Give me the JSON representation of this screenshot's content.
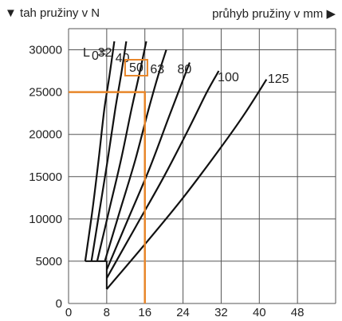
{
  "header": {
    "y_title": "tah pružiny v N",
    "y_marker": "▼",
    "x_title": "průhyb pružiny v mm",
    "x_marker": "▶"
  },
  "chart_data": {
    "type": "line",
    "title": "",
    "ylabel": "tah pružiny v N",
    "xlabel": "průhyb pružiny v mm",
    "xlim": [
      0,
      56
    ],
    "ylim": [
      0,
      32500
    ],
    "xticks": [
      "0",
      "8",
      "16",
      "24",
      "32",
      "40",
      "48"
    ],
    "yticks": [
      "0",
      "5000",
      "10000",
      "15000",
      "20000",
      "25000",
      "30000"
    ],
    "grid": true,
    "curve_label_prefix": "L",
    "curve_label_sub": "0",
    "curve_label_eq": "=",
    "series": [
      {
        "name": "32",
        "points": [
          [
            3.5,
            5000
          ],
          [
            5,
            11000
          ],
          [
            6.3,
            17000
          ],
          [
            7.5,
            23000
          ],
          [
            8.6,
            27000
          ],
          [
            9.6,
            31000
          ]
        ]
      },
      {
        "name": "40",
        "points": [
          [
            4.8,
            5000
          ],
          [
            6.5,
            11000
          ],
          [
            8.2,
            17000
          ],
          [
            9.8,
            23000
          ],
          [
            11,
            27000
          ],
          [
            12.1,
            31000
          ]
        ]
      },
      {
        "name": "50",
        "points": [
          [
            6,
            5000
          ],
          [
            8.5,
            11000
          ],
          [
            11,
            17000
          ],
          [
            13.2,
            23000
          ],
          [
            14.8,
            27000
          ],
          [
            16.3,
            31000
          ]
        ]
      },
      {
        "name": "63",
        "points": [
          [
            7.6,
            5000
          ],
          [
            10.8,
            11000
          ],
          [
            14,
            17000
          ],
          [
            16.8,
            23000
          ],
          [
            18.8,
            27000
          ],
          [
            20.5,
            30000
          ]
        ]
      },
      {
        "name": "80",
        "points": [
          [
            8,
            4000
          ],
          [
            12.5,
            10000
          ],
          [
            17,
            16000
          ],
          [
            21,
            22000
          ],
          [
            23.7,
            26000
          ],
          [
            25.4,
            28500
          ]
        ]
      },
      {
        "name": "100",
        "points": [
          [
            8,
            3000
          ],
          [
            14,
            9000
          ],
          [
            20,
            15000
          ],
          [
            25.5,
            21000
          ],
          [
            29,
            25000
          ],
          [
            31.5,
            27500
          ]
        ]
      },
      {
        "name": "125",
        "points": [
          [
            8,
            1700
          ],
          [
            16,
            7000
          ],
          [
            24,
            12500
          ],
          [
            32,
            18500
          ],
          [
            37,
            22500
          ],
          [
            41.5,
            26500
          ]
        ]
      }
    ],
    "highlight": {
      "label": "50",
      "x": 16,
      "y": 25000,
      "color": "#e8862a"
    },
    "colors": {
      "curves": "#111111",
      "grid": "#555555",
      "highlight": "#e8862a"
    }
  }
}
